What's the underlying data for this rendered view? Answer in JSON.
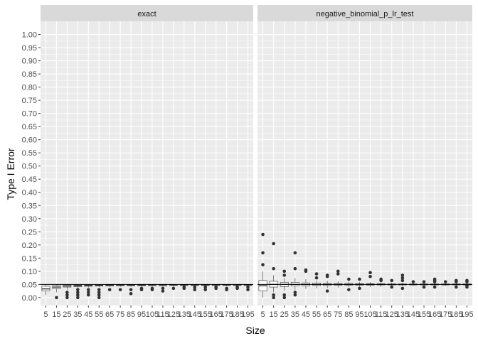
{
  "chart_data": {
    "type": "box",
    "xlabel": "Size",
    "ylabel": "Type I Error",
    "ylim": [
      -0.03,
      1.05
    ],
    "y_ticks": [
      "0.00",
      "0.05",
      "0.10",
      "0.15",
      "0.20",
      "0.25",
      "0.30",
      "0.35",
      "0.40",
      "0.45",
      "0.50",
      "0.55",
      "0.60",
      "0.65",
      "0.70",
      "0.75",
      "0.80",
      "0.85",
      "0.90",
      "0.95",
      "1.00"
    ],
    "categories": [
      "5",
      "15",
      "25",
      "35",
      "45",
      "55",
      "65",
      "75",
      "85",
      "95",
      "105",
      "115",
      "125",
      "135",
      "145",
      "155",
      "165",
      "175",
      "185",
      "195"
    ],
    "reference_line": 0.05,
    "grid": true,
    "colors": {
      "panel_bg": "#EBEBEB",
      "strip_bg": "#D9D9D9",
      "grid_major": "#FFFFFF",
      "box_fill": "#FFFFFF",
      "box_line": "#333333",
      "reference_line": "#000000"
    },
    "panels": [
      {
        "name": "exact",
        "boxes": [
          {
            "x": "5",
            "q1": 0.025,
            "median": 0.033,
            "q3": 0.043,
            "whisker_low": 0.01,
            "whisker_high": 0.05,
            "outliers": []
          },
          {
            "x": "15",
            "q1": 0.034,
            "median": 0.04,
            "q3": 0.046,
            "whisker_low": 0.02,
            "whisker_high": 0.05,
            "outliers": [
              0.0
            ]
          },
          {
            "x": "25",
            "q1": 0.04,
            "median": 0.044,
            "q3": 0.048,
            "whisker_low": 0.03,
            "whisker_high": 0.05,
            "outliers": [
              0.0,
              0.01,
              0.02
            ]
          },
          {
            "x": "35",
            "q1": 0.042,
            "median": 0.045,
            "q3": 0.048,
            "whisker_low": 0.035,
            "whisker_high": 0.05,
            "outliers": [
              0.0,
              0.01,
              0.02,
              0.03
            ]
          },
          {
            "x": "45",
            "q1": 0.043,
            "median": 0.046,
            "q3": 0.048,
            "whisker_low": 0.038,
            "whisker_high": 0.05,
            "outliers": [
              0.01,
              0.02,
              0.03
            ]
          },
          {
            "x": "55",
            "q1": 0.044,
            "median": 0.046,
            "q3": 0.048,
            "whisker_low": 0.04,
            "whisker_high": 0.05,
            "outliers": [
              0.0,
              0.01,
              0.02,
              0.03
            ]
          },
          {
            "x": "65",
            "q1": 0.044,
            "median": 0.047,
            "q3": 0.049,
            "whisker_low": 0.04,
            "whisker_high": 0.05,
            "outliers": [
              0.03
            ]
          },
          {
            "x": "75",
            "q1": 0.045,
            "median": 0.047,
            "q3": 0.049,
            "whisker_low": 0.041,
            "whisker_high": 0.05,
            "outliers": [
              0.03
            ]
          },
          {
            "x": "85",
            "q1": 0.045,
            "median": 0.047,
            "q3": 0.049,
            "whisker_low": 0.041,
            "whisker_high": 0.05,
            "outliers": [
              0.015,
              0.03
            ]
          },
          {
            "x": "95",
            "q1": 0.045,
            "median": 0.047,
            "q3": 0.049,
            "whisker_low": 0.042,
            "whisker_high": 0.05,
            "outliers": [
              0.03,
              0.035
            ]
          },
          {
            "x": "105",
            "q1": 0.045,
            "median": 0.048,
            "q3": 0.049,
            "whisker_low": 0.042,
            "whisker_high": 0.05,
            "outliers": [
              0.03,
              0.035
            ]
          },
          {
            "x": "115",
            "q1": 0.045,
            "median": 0.048,
            "q3": 0.049,
            "whisker_low": 0.042,
            "whisker_high": 0.05,
            "outliers": [
              0.025,
              0.035
            ]
          },
          {
            "x": "125",
            "q1": 0.046,
            "median": 0.048,
            "q3": 0.049,
            "whisker_low": 0.042,
            "whisker_high": 0.05,
            "outliers": [
              0.035
            ]
          },
          {
            "x": "135",
            "q1": 0.046,
            "median": 0.048,
            "q3": 0.049,
            "whisker_low": 0.042,
            "whisker_high": 0.05,
            "outliers": [
              0.035,
              0.04
            ]
          },
          {
            "x": "145",
            "q1": 0.046,
            "median": 0.048,
            "q3": 0.049,
            "whisker_low": 0.042,
            "whisker_high": 0.05,
            "outliers": [
              0.03,
              0.04
            ]
          },
          {
            "x": "155",
            "q1": 0.046,
            "median": 0.048,
            "q3": 0.049,
            "whisker_low": 0.043,
            "whisker_high": 0.05,
            "outliers": [
              0.03,
              0.04
            ]
          },
          {
            "x": "165",
            "q1": 0.046,
            "median": 0.048,
            "q3": 0.049,
            "whisker_low": 0.043,
            "whisker_high": 0.05,
            "outliers": [
              0.035,
              0.04
            ]
          },
          {
            "x": "175",
            "q1": 0.046,
            "median": 0.048,
            "q3": 0.049,
            "whisker_low": 0.043,
            "whisker_high": 0.05,
            "outliers": [
              0.03,
              0.035
            ]
          },
          {
            "x": "185",
            "q1": 0.046,
            "median": 0.048,
            "q3": 0.049,
            "whisker_low": 0.043,
            "whisker_high": 0.05,
            "outliers": [
              0.035,
              0.04
            ]
          },
          {
            "x": "195",
            "q1": 0.046,
            "median": 0.048,
            "q3": 0.049,
            "whisker_low": 0.043,
            "whisker_high": 0.05,
            "outliers": [
              0.03,
              0.04
            ]
          }
        ]
      },
      {
        "name": "negative_binomial_p_lr_test",
        "boxes": [
          {
            "x": "5",
            "q1": 0.025,
            "median": 0.045,
            "q3": 0.065,
            "whisker_low": 0.0,
            "whisker_high": 0.1,
            "outliers": [
              0.125,
              0.17,
              0.24
            ]
          },
          {
            "x": "15",
            "q1": 0.04,
            "median": 0.05,
            "q3": 0.062,
            "whisker_low": 0.02,
            "whisker_high": 0.085,
            "outliers": [
              0.0,
              0.01,
              0.11,
              0.205
            ]
          },
          {
            "x": "25",
            "q1": 0.042,
            "median": 0.05,
            "q3": 0.058,
            "whisker_low": 0.025,
            "whisker_high": 0.075,
            "outliers": [
              0.0,
              0.01,
              0.085,
              0.1
            ]
          },
          {
            "x": "35",
            "q1": 0.044,
            "median": 0.05,
            "q3": 0.058,
            "whisker_low": 0.03,
            "whisker_high": 0.075,
            "outliers": [
              0.01,
              0.02,
              0.11,
              0.17
            ]
          },
          {
            "x": "45",
            "q1": 0.045,
            "median": 0.05,
            "q3": 0.056,
            "whisker_low": 0.033,
            "whisker_high": 0.07,
            "outliers": [
              0.1,
              0.105
            ]
          },
          {
            "x": "55",
            "q1": 0.046,
            "median": 0.05,
            "q3": 0.055,
            "whisker_low": 0.035,
            "whisker_high": 0.065,
            "outliers": [
              0.075,
              0.09
            ]
          },
          {
            "x": "65",
            "q1": 0.046,
            "median": 0.05,
            "q3": 0.054,
            "whisker_low": 0.036,
            "whisker_high": 0.064,
            "outliers": [
              0.025,
              0.08,
              0.085
            ]
          },
          {
            "x": "75",
            "q1": 0.047,
            "median": 0.05,
            "q3": 0.054,
            "whisker_low": 0.038,
            "whisker_high": 0.062,
            "outliers": [
              0.09,
              0.1
            ]
          },
          {
            "x": "85",
            "q1": 0.047,
            "median": 0.05,
            "q3": 0.054,
            "whisker_low": 0.04,
            "whisker_high": 0.06,
            "outliers": [
              0.03,
              0.07
            ]
          },
          {
            "x": "95",
            "q1": 0.047,
            "median": 0.05,
            "q3": 0.053,
            "whisker_low": 0.04,
            "whisker_high": 0.06,
            "outliers": [
              0.035,
              0.07
            ]
          },
          {
            "x": "105",
            "q1": 0.047,
            "median": 0.05,
            "q3": 0.053,
            "whisker_low": 0.041,
            "whisker_high": 0.059,
            "outliers": [
              0.08,
              0.095
            ]
          },
          {
            "x": "115",
            "q1": 0.048,
            "median": 0.05,
            "q3": 0.053,
            "whisker_low": 0.041,
            "whisker_high": 0.058,
            "outliers": [
              0.065,
              0.07
            ]
          },
          {
            "x": "125",
            "q1": 0.048,
            "median": 0.05,
            "q3": 0.052,
            "whisker_low": 0.042,
            "whisker_high": 0.057,
            "outliers": [
              0.04,
              0.065
            ]
          },
          {
            "x": "135",
            "q1": 0.048,
            "median": 0.05,
            "q3": 0.052,
            "whisker_low": 0.043,
            "whisker_high": 0.057,
            "outliers": [
              0.035,
              0.065,
              0.075,
              0.085
            ]
          },
          {
            "x": "145",
            "q1": 0.048,
            "median": 0.05,
            "q3": 0.052,
            "whisker_low": 0.043,
            "whisker_high": 0.057,
            "outliers": [
              0.06
            ]
          },
          {
            "x": "155",
            "q1": 0.048,
            "median": 0.05,
            "q3": 0.052,
            "whisker_low": 0.043,
            "whisker_high": 0.056,
            "outliers": [
              0.04,
              0.06
            ]
          },
          {
            "x": "165",
            "q1": 0.048,
            "median": 0.05,
            "q3": 0.052,
            "whisker_low": 0.044,
            "whisker_high": 0.056,
            "outliers": [
              0.04,
              0.06,
              0.065,
              0.07
            ]
          },
          {
            "x": "175",
            "q1": 0.048,
            "median": 0.05,
            "q3": 0.052,
            "whisker_low": 0.044,
            "whisker_high": 0.056,
            "outliers": [
              0.06
            ]
          },
          {
            "x": "185",
            "q1": 0.048,
            "median": 0.05,
            "q3": 0.052,
            "whisker_low": 0.044,
            "whisker_high": 0.056,
            "outliers": [
              0.04,
              0.06,
              0.065
            ]
          },
          {
            "x": "195",
            "q1": 0.048,
            "median": 0.05,
            "q3": 0.052,
            "whisker_low": 0.044,
            "whisker_high": 0.055,
            "outliers": [
              0.04,
              0.045,
              0.06,
              0.065
            ]
          }
        ]
      }
    ]
  }
}
